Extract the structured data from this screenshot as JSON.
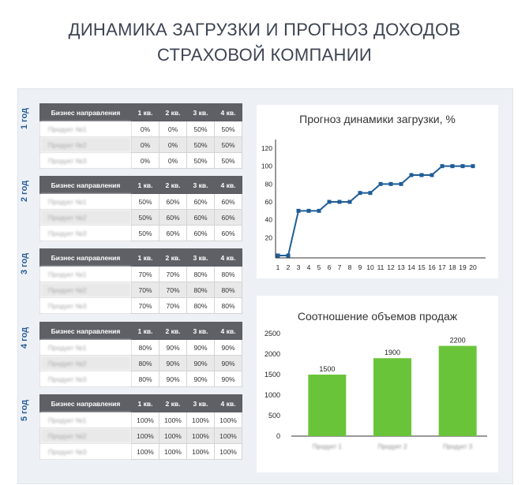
{
  "page": {
    "title_line1": "ДИНАМИКА ЗАГРУЗКИ И ПРОГНОЗ ДОХОДОВ",
    "title_line2": "СТРАХОВОЙ КОМПАНИИ"
  },
  "tables": {
    "headers": [
      "Бизнес направления",
      "1 кв.",
      "2 кв.",
      "3 кв.",
      "4 кв."
    ],
    "years": [
      {
        "label": "1 год",
        "rows": [
          {
            "name": "Продукт №1",
            "q": [
              "0%",
              "0%",
              "50%",
              "50%"
            ]
          },
          {
            "name": "Продукт №2",
            "q": [
              "0%",
              "0%",
              "50%",
              "50%"
            ]
          },
          {
            "name": "Продукт №3",
            "q": [
              "0%",
              "0%",
              "50%",
              "50%"
            ]
          }
        ]
      },
      {
        "label": "2 год",
        "rows": [
          {
            "name": "Продукт №1",
            "q": [
              "50%",
              "60%",
              "60%",
              "60%"
            ]
          },
          {
            "name": "Продукт №2",
            "q": [
              "50%",
              "60%",
              "60%",
              "60%"
            ]
          },
          {
            "name": "Продукт №3",
            "q": [
              "50%",
              "60%",
              "60%",
              "60%"
            ]
          }
        ]
      },
      {
        "label": "3 год",
        "rows": [
          {
            "name": "Продукт №1",
            "q": [
              "70%",
              "70%",
              "80%",
              "80%"
            ]
          },
          {
            "name": "Продукт №2",
            "q": [
              "70%",
              "70%",
              "80%",
              "80%"
            ]
          },
          {
            "name": "Продукт №3",
            "q": [
              "70%",
              "70%",
              "80%",
              "80%"
            ]
          }
        ]
      },
      {
        "label": "4 год",
        "rows": [
          {
            "name": "Продукт №1",
            "q": [
              "80%",
              "90%",
              "90%",
              "90%"
            ]
          },
          {
            "name": "Продукт №2",
            "q": [
              "80%",
              "90%",
              "90%",
              "90%"
            ]
          },
          {
            "name": "Продукт №3",
            "q": [
              "80%",
              "90%",
              "90%",
              "90%"
            ]
          }
        ]
      },
      {
        "label": "5 год",
        "rows": [
          {
            "name": "Продукт №1",
            "q": [
              "100%",
              "100%",
              "100%",
              "100%"
            ]
          },
          {
            "name": "Продукт №2",
            "q": [
              "100%",
              "100%",
              "100%",
              "100%"
            ]
          },
          {
            "name": "Продукт №3",
            "q": [
              "100%",
              "100%",
              "100%",
              "100%"
            ]
          }
        ]
      }
    ]
  },
  "chart_data": [
    {
      "type": "line",
      "title": "Прогноз динамики загрузки, %",
      "x": [
        1,
        2,
        3,
        4,
        5,
        6,
        7,
        8,
        9,
        10,
        11,
        12,
        13,
        14,
        15,
        16,
        17,
        18,
        19,
        20
      ],
      "values": [
        0,
        0,
        50,
        50,
        50,
        60,
        60,
        60,
        70,
        70,
        80,
        80,
        80,
        90,
        90,
        90,
        100,
        100,
        100,
        100
      ],
      "ylim": [
        0,
        120
      ],
      "yticks": [
        20,
        40,
        60,
        80,
        100,
        120
      ],
      "ytick_suffix": "%",
      "grid": false,
      "color": "#1f5d96"
    },
    {
      "type": "bar",
      "title": "Соотношение объемов продаж",
      "categories": [
        "Продукт 1",
        "Продукт 2",
        "Продукт 3"
      ],
      "values": [
        1500,
        1900,
        2200
      ],
      "ylim": [
        0,
        2500
      ],
      "yticks": [
        0,
        500,
        1000,
        1500,
        2000,
        2500
      ],
      "grid": false,
      "color": "#6ac43a"
    }
  ]
}
